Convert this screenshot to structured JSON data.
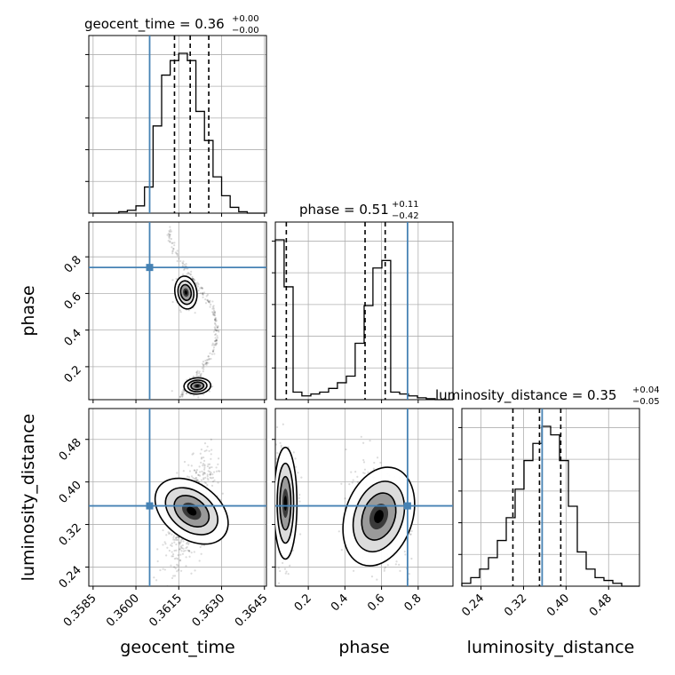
{
  "chart_data": {
    "type": "corner",
    "parameters": [
      "geocent_time",
      "phase",
      "luminosity_distance"
    ],
    "truths": {
      "geocent_time": 0.36048,
      "phase": 0.742,
      "luminosity_distance": 0.355
    },
    "titles": [
      {
        "param": "geocent_time",
        "prefix": "geocent_time = 0.36",
        "plus": "+0.00",
        "minus": "−0.00"
      },
      {
        "param": "phase",
        "prefix": "phase = 0.51",
        "plus": "+0.11",
        "minus": "−0.42"
      },
      {
        "param": "luminosity_distance",
        "prefix": "luminosity_distance = 0.35",
        "plus": "+0.04",
        "minus": "−0.05"
      }
    ],
    "axes": {
      "geocent_time": {
        "range": [
          0.35835,
          0.36457
        ],
        "ticks": [
          0.3585,
          0.36,
          0.3615,
          0.363,
          0.3645
        ],
        "tick_labels": [
          "0.3585",
          "0.3600",
          "0.3615",
          "0.3630",
          "0.3645"
        ]
      },
      "phase": {
        "range": [
          0.02,
          0.99
        ],
        "ticks": [
          0.2,
          0.4,
          0.6,
          0.8
        ],
        "tick_labels": [
          "0.2",
          "0.4",
          "0.6",
          "0.8"
        ]
      },
      "luminosity_distance": {
        "range": [
          0.204,
          0.538
        ],
        "ticks": [
          0.24,
          0.32,
          0.4,
          0.48
        ],
        "tick_labels": [
          "0.24",
          "0.32",
          "0.40",
          "0.48"
        ]
      }
    },
    "quantiles": {
      "geocent_time": [
        0.36135,
        0.3619,
        0.36255
      ],
      "phase": [
        0.08,
        0.51,
        0.62
      ],
      "luminosity_distance": [
        0.3,
        0.35,
        0.39
      ]
    },
    "histograms": {
      "geocent_time": {
        "edges": [
          0.3585,
          0.3588,
          0.3591,
          0.3594,
          0.3597,
          0.36,
          0.3603,
          0.3606,
          0.3609,
          0.3612,
          0.3615,
          0.3618,
          0.3621,
          0.3624,
          0.3627,
          0.363,
          0.3633,
          0.3636,
          0.3639,
          0.3642,
          0.3645
        ],
        "counts": [
          0,
          0,
          0,
          1,
          2,
          5,
          18,
          60,
          95,
          105,
          110,
          105,
          70,
          50,
          25,
          12,
          4,
          1,
          0,
          0
        ]
      },
      "phase": {
        "edges": [
          0.02,
          0.068,
          0.117,
          0.165,
          0.214,
          0.262,
          0.311,
          0.359,
          0.408,
          0.456,
          0.505,
          0.553,
          0.602,
          0.65,
          0.699,
          0.747,
          0.796,
          0.844,
          0.893,
          0.941,
          0.99
        ],
        "counts": [
          170,
          120,
          8,
          4,
          6,
          8,
          12,
          18,
          25,
          60,
          100,
          140,
          148,
          8,
          6,
          4,
          2,
          1,
          0,
          0
        ]
      },
      "luminosity_distance": {
        "edges": [
          0.204,
          0.2207,
          0.2374,
          0.2541,
          0.2708,
          0.2875,
          0.3042,
          0.3209,
          0.3376,
          0.3543,
          0.371,
          0.3877,
          0.4044,
          0.4211,
          0.4378,
          0.4545,
          0.4712,
          0.4879,
          0.5046,
          0.5213,
          0.538
        ],
        "counts": [
          1,
          3,
          6,
          10,
          16,
          24,
          34,
          44,
          50,
          56,
          53,
          44,
          28,
          12,
          6,
          3,
          2,
          1,
          0,
          0
        ]
      }
    }
  }
}
